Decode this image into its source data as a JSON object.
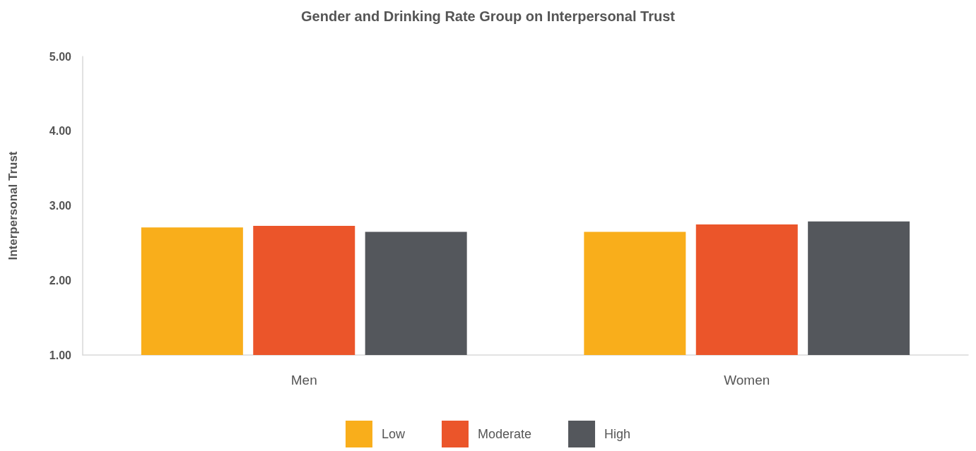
{
  "chart_data": {
    "type": "bar",
    "title": "Gender and Drinking Rate Group on Interpersonal Trust",
    "ylabel": "Interpersonal Trust",
    "categories": [
      "Men",
      "Women"
    ],
    "series": [
      {
        "name": "Low",
        "color": "#f9ae1b",
        "values": [
          2.71,
          2.65
        ]
      },
      {
        "name": "Moderate",
        "color": "#eb552a",
        "values": [
          2.73,
          2.75
        ]
      },
      {
        "name": "High",
        "color": "#54575c",
        "values": [
          2.65,
          2.79
        ]
      }
    ],
    "ylim": [
      1,
      5
    ],
    "yticks": [
      {
        "value": 1,
        "label": "1.00"
      },
      {
        "value": 2,
        "label": "2.00"
      },
      {
        "value": 3,
        "label": "3.00"
      },
      {
        "value": 4,
        "label": "4.00"
      },
      {
        "value": 5,
        "label": "5.00"
      }
    ],
    "grid": false,
    "legend": "bottom"
  }
}
